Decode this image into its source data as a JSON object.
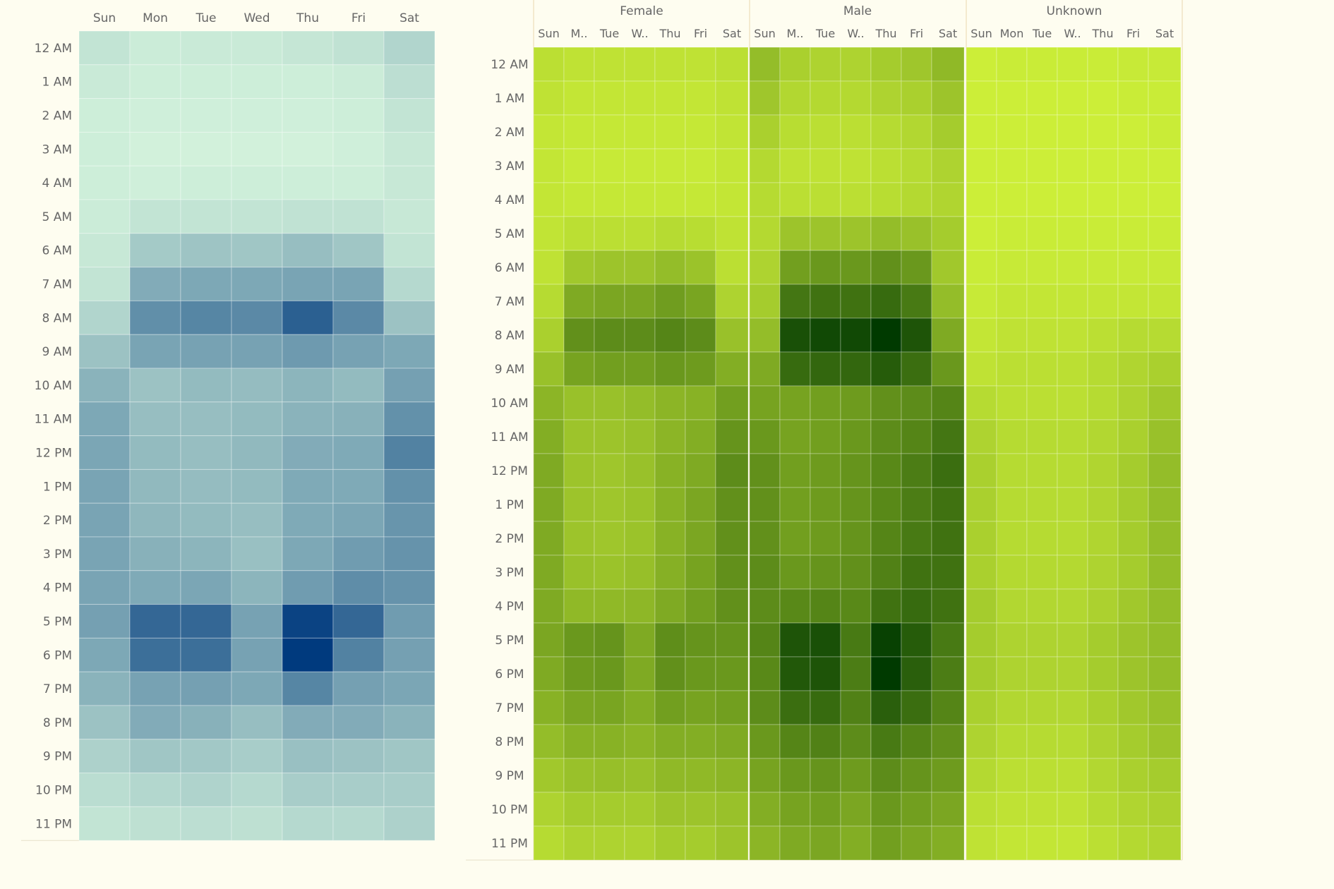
{
  "chart_data": [
    {
      "type": "heatmap",
      "title": "",
      "x_labels": [
        "Sun",
        "Mon",
        "Tue",
        "Wed",
        "Thu",
        "Fri",
        "Sat"
      ],
      "y_labels": [
        "12 AM",
        "1 AM",
        "2 AM",
        "3 AM",
        "4 AM",
        "5 AM",
        "6 AM",
        "7 AM",
        "8 AM",
        "9 AM",
        "10 AM",
        "11 AM",
        "12 PM",
        "1 PM",
        "2 PM",
        "3 PM",
        "4 PM",
        "5 PM",
        "6 PM",
        "7 PM",
        "8 PM",
        "9 PM",
        "10 PM",
        "11 PM"
      ],
      "color_low": "#d8f7de",
      "color_high": "#003a7e",
      "values": [
        [
          0.1,
          0.06,
          0.07,
          0.07,
          0.09,
          0.11,
          0.18
        ],
        [
          0.07,
          0.05,
          0.05,
          0.05,
          0.05,
          0.06,
          0.13
        ],
        [
          0.05,
          0.04,
          0.04,
          0.04,
          0.04,
          0.05,
          0.1
        ],
        [
          0.05,
          0.03,
          0.03,
          0.03,
          0.03,
          0.04,
          0.08
        ],
        [
          0.05,
          0.04,
          0.05,
          0.05,
          0.05,
          0.05,
          0.08
        ],
        [
          0.06,
          0.1,
          0.1,
          0.1,
          0.11,
          0.11,
          0.08
        ],
        [
          0.08,
          0.24,
          0.27,
          0.26,
          0.3,
          0.26,
          0.1
        ],
        [
          0.1,
          0.4,
          0.42,
          0.42,
          0.44,
          0.44,
          0.16
        ],
        [
          0.18,
          0.55,
          0.6,
          0.58,
          0.8,
          0.58,
          0.28
        ],
        [
          0.28,
          0.44,
          0.45,
          0.45,
          0.49,
          0.45,
          0.42
        ],
        [
          0.36,
          0.28,
          0.32,
          0.31,
          0.35,
          0.32,
          0.46
        ],
        [
          0.42,
          0.3,
          0.3,
          0.32,
          0.36,
          0.37,
          0.54
        ],
        [
          0.43,
          0.32,
          0.3,
          0.33,
          0.4,
          0.41,
          0.62
        ],
        [
          0.44,
          0.33,
          0.31,
          0.32,
          0.41,
          0.41,
          0.54
        ],
        [
          0.44,
          0.34,
          0.32,
          0.3,
          0.41,
          0.43,
          0.52
        ],
        [
          0.44,
          0.37,
          0.35,
          0.29,
          0.42,
          0.48,
          0.53
        ],
        [
          0.44,
          0.41,
          0.43,
          0.35,
          0.48,
          0.56,
          0.53
        ],
        [
          0.46,
          0.76,
          0.76,
          0.45,
          0.95,
          0.76,
          0.48
        ],
        [
          0.42,
          0.72,
          0.72,
          0.45,
          1.0,
          0.62,
          0.46
        ],
        [
          0.36,
          0.45,
          0.46,
          0.42,
          0.6,
          0.46,
          0.43
        ],
        [
          0.28,
          0.4,
          0.37,
          0.3,
          0.4,
          0.4,
          0.36
        ],
        [
          0.2,
          0.26,
          0.25,
          0.22,
          0.29,
          0.28,
          0.26
        ],
        [
          0.14,
          0.17,
          0.19,
          0.16,
          0.22,
          0.22,
          0.22
        ],
        [
          0.1,
          0.12,
          0.13,
          0.12,
          0.16,
          0.16,
          0.2
        ]
      ]
    },
    {
      "type": "heatmap",
      "title": "",
      "groups": [
        "Female",
        "Male",
        "Unknown"
      ],
      "x_labels": [
        [
          "Sun",
          "M..",
          "Tue",
          "W..",
          "Thu",
          "Fri",
          "Sat"
        ],
        [
          "Sun",
          "M..",
          "Tue",
          "W..",
          "Thu",
          "Fri",
          "Sat"
        ],
        [
          "Sun",
          "Mon",
          "Tue",
          "W..",
          "Thu",
          "Fri",
          "Sat"
        ]
      ],
      "y_labels": [
        "12 AM",
        "1 AM",
        "2 AM",
        "3 AM",
        "4 AM",
        "5 AM",
        "6 AM",
        "7 AM",
        "8 AM",
        "9 AM",
        "10 AM",
        "11 AM",
        "12 PM",
        "1 PM",
        "2 PM",
        "3 PM",
        "4 PM",
        "5 PM",
        "6 PM",
        "7 PM",
        "8 PM",
        "9 PM",
        "10 PM",
        "11 PM"
      ],
      "color_low": "#d4f53a",
      "color_high": "#003a00",
      "values": [
        [
          0.12,
          0.1,
          0.1,
          0.1,
          0.1,
          0.1,
          0.12,
          0.3,
          0.2,
          0.18,
          0.18,
          0.22,
          0.25,
          0.32,
          0.04,
          0.05,
          0.05,
          0.05,
          0.05,
          0.06,
          0.06
        ],
        [
          0.1,
          0.08,
          0.08,
          0.08,
          0.08,
          0.08,
          0.1,
          0.25,
          0.16,
          0.15,
          0.15,
          0.18,
          0.2,
          0.26,
          0.04,
          0.04,
          0.04,
          0.04,
          0.04,
          0.05,
          0.05
        ],
        [
          0.08,
          0.07,
          0.07,
          0.07,
          0.07,
          0.07,
          0.09,
          0.2,
          0.13,
          0.12,
          0.12,
          0.14,
          0.16,
          0.22,
          0.04,
          0.04,
          0.04,
          0.04,
          0.04,
          0.04,
          0.05
        ],
        [
          0.08,
          0.06,
          0.06,
          0.06,
          0.06,
          0.06,
          0.08,
          0.15,
          0.1,
          0.1,
          0.1,
          0.12,
          0.14,
          0.18,
          0.04,
          0.04,
          0.04,
          0.04,
          0.04,
          0.04,
          0.04
        ],
        [
          0.08,
          0.07,
          0.07,
          0.07,
          0.07,
          0.07,
          0.08,
          0.14,
          0.12,
          0.12,
          0.12,
          0.13,
          0.15,
          0.17,
          0.04,
          0.04,
          0.04,
          0.04,
          0.04,
          0.04,
          0.04
        ],
        [
          0.09,
          0.12,
          0.12,
          0.12,
          0.14,
          0.13,
          0.1,
          0.15,
          0.26,
          0.26,
          0.26,
          0.3,
          0.28,
          0.22,
          0.04,
          0.05,
          0.05,
          0.05,
          0.05,
          0.05,
          0.05
        ],
        [
          0.1,
          0.24,
          0.26,
          0.26,
          0.3,
          0.27,
          0.12,
          0.18,
          0.46,
          0.5,
          0.5,
          0.54,
          0.5,
          0.24,
          0.05,
          0.06,
          0.06,
          0.06,
          0.06,
          0.06,
          0.06
        ],
        [
          0.14,
          0.4,
          0.42,
          0.42,
          0.47,
          0.43,
          0.18,
          0.22,
          0.68,
          0.7,
          0.7,
          0.74,
          0.66,
          0.3,
          0.06,
          0.08,
          0.08,
          0.08,
          0.08,
          0.08,
          0.08
        ],
        [
          0.2,
          0.54,
          0.56,
          0.56,
          0.6,
          0.56,
          0.28,
          0.3,
          0.88,
          0.92,
          0.92,
          1.0,
          0.86,
          0.4,
          0.08,
          0.1,
          0.1,
          0.1,
          0.12,
          0.14,
          0.14
        ],
        [
          0.28,
          0.44,
          0.46,
          0.46,
          0.5,
          0.48,
          0.38,
          0.4,
          0.74,
          0.76,
          0.76,
          0.82,
          0.72,
          0.5,
          0.1,
          0.12,
          0.12,
          0.12,
          0.14,
          0.17,
          0.2
        ],
        [
          0.34,
          0.28,
          0.28,
          0.3,
          0.34,
          0.36,
          0.46,
          0.44,
          0.44,
          0.46,
          0.48,
          0.54,
          0.56,
          0.6,
          0.14,
          0.12,
          0.12,
          0.12,
          0.14,
          0.18,
          0.24
        ],
        [
          0.38,
          0.26,
          0.26,
          0.28,
          0.34,
          0.38,
          0.52,
          0.5,
          0.44,
          0.46,
          0.5,
          0.56,
          0.6,
          0.68,
          0.18,
          0.14,
          0.14,
          0.14,
          0.16,
          0.2,
          0.28
        ],
        [
          0.4,
          0.26,
          0.25,
          0.28,
          0.36,
          0.4,
          0.56,
          0.54,
          0.46,
          0.48,
          0.52,
          0.58,
          0.64,
          0.72,
          0.2,
          0.14,
          0.14,
          0.14,
          0.17,
          0.22,
          0.3
        ],
        [
          0.4,
          0.26,
          0.25,
          0.27,
          0.36,
          0.42,
          0.54,
          0.54,
          0.46,
          0.48,
          0.52,
          0.58,
          0.64,
          0.7,
          0.2,
          0.14,
          0.14,
          0.14,
          0.17,
          0.22,
          0.3
        ],
        [
          0.4,
          0.26,
          0.25,
          0.27,
          0.36,
          0.42,
          0.54,
          0.54,
          0.46,
          0.48,
          0.52,
          0.6,
          0.66,
          0.7,
          0.2,
          0.14,
          0.14,
          0.14,
          0.17,
          0.22,
          0.3
        ],
        [
          0.4,
          0.28,
          0.27,
          0.29,
          0.37,
          0.44,
          0.54,
          0.56,
          0.5,
          0.52,
          0.54,
          0.62,
          0.7,
          0.7,
          0.2,
          0.15,
          0.15,
          0.15,
          0.18,
          0.22,
          0.3
        ],
        [
          0.4,
          0.32,
          0.32,
          0.33,
          0.4,
          0.46,
          0.54,
          0.56,
          0.58,
          0.6,
          0.58,
          0.7,
          0.74,
          0.7,
          0.22,
          0.16,
          0.16,
          0.16,
          0.19,
          0.24,
          0.3
        ],
        [
          0.42,
          0.5,
          0.52,
          0.4,
          0.55,
          0.52,
          0.52,
          0.6,
          0.86,
          0.88,
          0.66,
          0.96,
          0.82,
          0.66,
          0.22,
          0.18,
          0.18,
          0.18,
          0.22,
          0.26,
          0.3
        ],
        [
          0.4,
          0.48,
          0.5,
          0.4,
          0.54,
          0.5,
          0.5,
          0.58,
          0.84,
          0.86,
          0.64,
          1.0,
          0.8,
          0.64,
          0.22,
          0.18,
          0.18,
          0.18,
          0.22,
          0.26,
          0.3
        ],
        [
          0.36,
          0.42,
          0.43,
          0.38,
          0.46,
          0.44,
          0.46,
          0.56,
          0.72,
          0.74,
          0.62,
          0.8,
          0.72,
          0.6,
          0.2,
          0.16,
          0.16,
          0.16,
          0.2,
          0.24,
          0.28
        ],
        [
          0.3,
          0.36,
          0.36,
          0.34,
          0.38,
          0.38,
          0.4,
          0.5,
          0.6,
          0.62,
          0.56,
          0.66,
          0.6,
          0.54,
          0.18,
          0.14,
          0.14,
          0.14,
          0.18,
          0.22,
          0.26
        ],
        [
          0.24,
          0.28,
          0.29,
          0.28,
          0.32,
          0.32,
          0.34,
          0.44,
          0.5,
          0.52,
          0.48,
          0.56,
          0.52,
          0.48,
          0.15,
          0.12,
          0.12,
          0.12,
          0.16,
          0.2,
          0.22
        ],
        [
          0.18,
          0.22,
          0.22,
          0.22,
          0.26,
          0.26,
          0.28,
          0.38,
          0.44,
          0.46,
          0.42,
          0.5,
          0.46,
          0.42,
          0.12,
          0.1,
          0.1,
          0.1,
          0.14,
          0.17,
          0.19
        ],
        [
          0.14,
          0.18,
          0.18,
          0.18,
          0.22,
          0.22,
          0.26,
          0.34,
          0.4,
          0.42,
          0.38,
          0.46,
          0.42,
          0.38,
          0.1,
          0.08,
          0.08,
          0.08,
          0.12,
          0.15,
          0.17
        ]
      ]
    }
  ]
}
